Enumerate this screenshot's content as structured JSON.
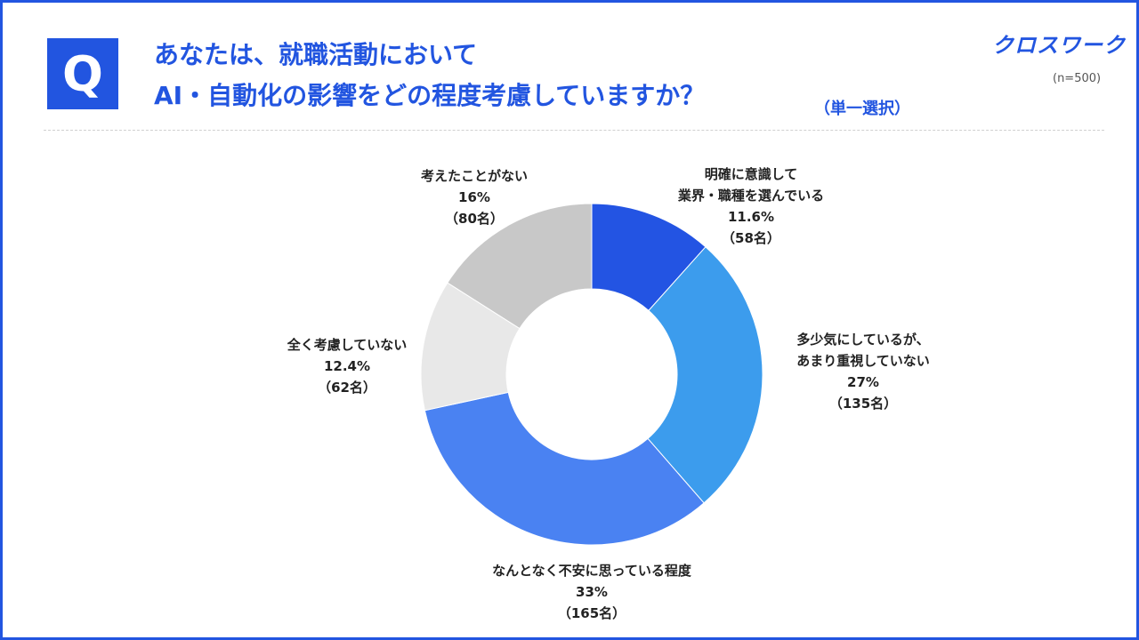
{
  "header": {
    "q_label": "Q",
    "title_line1": "あなたは、就職活動において",
    "title_line2": "AI・自動化の影響をどの程度考慮していますか？",
    "subtitle": "（単一選択）",
    "brand": "クロスワーク",
    "sample": "(n=500)"
  },
  "chart_data": {
    "type": "pie",
    "title": "あなたは、就職活動においてAI・自動化の影響をどの程度考慮していますか？",
    "slices": [
      {
        "label_lines": [
          "明確に意識して",
          "業界・職種を選んでいる"
        ],
        "value": 11.6,
        "percent_label": "11.6%",
        "count_label": "（58名）",
        "color": "#2354e3"
      },
      {
        "label_lines": [
          "多少気にしているが、",
          "あまり重視していない"
        ],
        "value": 27,
        "percent_label": "27%",
        "count_label": "（135名）",
        "color": "#3c9ced"
      },
      {
        "label_lines": [
          "なんとなく不安に思っている程度"
        ],
        "value": 33,
        "percent_label": "33%",
        "count_label": "（165名）",
        "color": "#4a82f2"
      },
      {
        "label_lines": [
          "全く考慮していない"
        ],
        "value": 12.4,
        "percent_label": "12.4%",
        "count_label": "（62名）",
        "color": "#e8e8e8"
      },
      {
        "label_lines": [
          "考えたことがない"
        ],
        "value": 16,
        "percent_label": "16%",
        "count_label": "（80名）",
        "color": "#c8c8c8"
      }
    ]
  }
}
